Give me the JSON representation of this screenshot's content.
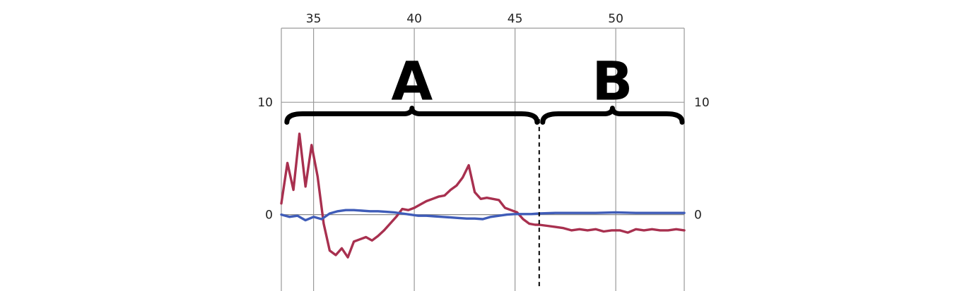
{
  "chart_data": {
    "type": "line",
    "title": "",
    "xlabel": "",
    "ylabel": "",
    "xlim": [
      33.4,
      53.4
    ],
    "ylim": [
      -6.8,
      16.6
    ],
    "x_ticks": [
      "35",
      "40",
      "45",
      "50"
    ],
    "x_tick_values": [
      35,
      40,
      45,
      50
    ],
    "y_ticks_left": [
      "10",
      "0"
    ],
    "y_ticks_right": [
      "10",
      "0"
    ],
    "y_tick_values": [
      10,
      0
    ],
    "grid": true,
    "vertical_grid_at": [
      35,
      40,
      45,
      50
    ],
    "divider_x": 46.2,
    "regions": [
      {
        "label": "A",
        "x_start": 33.5,
        "x_end": 46.2
      },
      {
        "label": "B",
        "x_start": 46.2,
        "x_end": 53.4
      }
    ],
    "series": [
      {
        "color": "#a8304f",
        "x": [
          33.4,
          33.7,
          34.0,
          34.3,
          34.6,
          34.9,
          35.2,
          35.5,
          35.8,
          36.1,
          36.4,
          36.7,
          37.0,
          37.3,
          37.6,
          37.9,
          38.2,
          38.5,
          38.8,
          39.1,
          39.4,
          39.7,
          40.0,
          40.3,
          40.6,
          40.9,
          41.2,
          41.5,
          41.8,
          42.1,
          42.4,
          42.7,
          43.0,
          43.3,
          43.6,
          43.9,
          44.2,
          44.5,
          44.8,
          45.1,
          45.4,
          45.7,
          46.0,
          46.2,
          46.6,
          47.0,
          47.4,
          47.8,
          48.2,
          48.6,
          49.0,
          49.4,
          49.8,
          50.2,
          50.6,
          51.0,
          51.4,
          51.8,
          52.2,
          52.6,
          53.0,
          53.4
        ],
        "values": [
          1.0,
          4.6,
          2.2,
          7.2,
          2.5,
          6.2,
          3.4,
          -0.8,
          -3.2,
          -3.6,
          -3.0,
          -3.8,
          -2.4,
          -2.2,
          -2.0,
          -2.3,
          -1.9,
          -1.4,
          -0.8,
          -0.2,
          0.5,
          0.4,
          0.6,
          0.9,
          1.2,
          1.4,
          1.6,
          1.7,
          2.2,
          2.6,
          3.3,
          4.4,
          2.0,
          1.4,
          1.5,
          1.4,
          1.3,
          0.6,
          0.4,
          0.2,
          -0.4,
          -0.8,
          -0.9,
          -0.9,
          -1.0,
          -1.1,
          -1.2,
          -1.4,
          -1.3,
          -1.4,
          -1.3,
          -1.5,
          -1.4,
          -1.4,
          -1.6,
          -1.3,
          -1.4,
          -1.3,
          -1.4,
          -1.4,
          -1.3,
          -1.4
        ]
      },
      {
        "color": "#3f5cb8",
        "x": [
          33.4,
          33.8,
          34.2,
          34.6,
          35.0,
          35.4,
          35.8,
          36.2,
          36.6,
          37.0,
          37.4,
          37.8,
          38.2,
          38.6,
          39.0,
          39.4,
          39.8,
          40.2,
          40.6,
          41.0,
          41.4,
          41.8,
          42.2,
          42.6,
          43.0,
          43.4,
          43.8,
          44.2,
          44.6,
          45.0,
          45.4,
          45.8,
          46.2,
          47.0,
          48.0,
          49.0,
          50.0,
          51.0,
          52.0,
          53.0,
          53.4
        ],
        "values": [
          0.0,
          -0.2,
          -0.1,
          -0.5,
          -0.2,
          -0.4,
          0.1,
          0.3,
          0.4,
          0.4,
          0.35,
          0.3,
          0.3,
          0.25,
          0.2,
          0.1,
          0.0,
          -0.1,
          -0.1,
          -0.15,
          -0.2,
          -0.25,
          -0.3,
          -0.35,
          -0.35,
          -0.4,
          -0.2,
          -0.1,
          0.0,
          0.05,
          0.05,
          0.05,
          0.1,
          0.15,
          0.15,
          0.15,
          0.2,
          0.15,
          0.15,
          0.15,
          0.15
        ]
      }
    ]
  }
}
